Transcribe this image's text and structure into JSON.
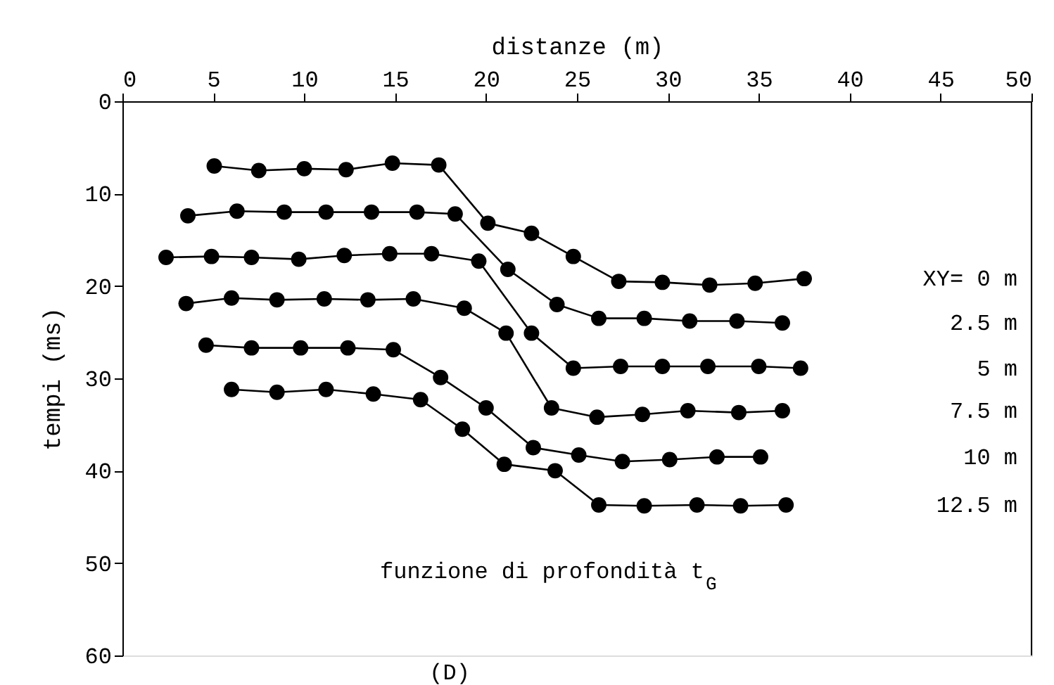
{
  "chart_data": {
    "type": "line",
    "xlabel": "distanze (m)",
    "ylabel": "tempi (ms)",
    "xlim": [
      0,
      50
    ],
    "xticks": [
      0,
      5,
      10,
      15,
      20,
      25,
      30,
      35,
      40,
      45,
      50
    ],
    "ylim": [
      60,
      0
    ],
    "yticks": [
      0,
      10,
      20,
      30,
      40,
      50,
      60
    ],
    "marker": "circle",
    "line_style": "solid",
    "grid": false,
    "legend": false,
    "annotations": [
      "funzione di profondità t$_{G}$",
      "(D)"
    ],
    "series": [
      {
        "name": "XY= 0 m",
        "color": "#000000",
        "x": [
          5.05,
          7.5,
          10.0,
          12.3,
          14.85,
          17.4,
          20.1,
          22.5,
          24.8,
          27.3,
          29.7,
          32.3,
          34.8,
          37.5
        ],
        "values": [
          7.0,
          7.5,
          7.3,
          7.4,
          6.7,
          6.9,
          13.2,
          14.3,
          16.8,
          19.5,
          19.6,
          19.9,
          19.7,
          19.2
        ]
      },
      {
        "name": "2.5 m",
        "color": "#000000",
        "x": [
          3.6,
          6.3,
          8.9,
          11.2,
          13.7,
          16.2,
          18.3,
          21.2,
          23.9,
          26.2,
          28.7,
          31.2,
          33.8,
          36.3
        ],
        "values": [
          12.4,
          11.9,
          12.0,
          12.0,
          12.0,
          12.0,
          12.2,
          18.2,
          22.0,
          23.5,
          23.5,
          23.8,
          23.8,
          24.0
        ]
      },
      {
        "name": "5 m",
        "color": "#000000",
        "x": [
          2.4,
          4.9,
          7.1,
          9.7,
          12.2,
          14.7,
          17.0,
          19.6,
          22.5,
          24.8,
          27.4,
          29.7,
          32.2,
          35.0,
          37.3
        ],
        "values": [
          16.9,
          16.8,
          16.9,
          17.1,
          16.7,
          16.5,
          16.5,
          17.3,
          25.1,
          28.9,
          28.7,
          28.7,
          28.7,
          28.7,
          28.9
        ]
      },
      {
        "name": "7.5 m",
        "color": "#000000",
        "x": [
          3.5,
          6.0,
          8.5,
          11.1,
          13.5,
          16.0,
          18.8,
          21.1,
          23.6,
          26.1,
          28.6,
          31.1,
          33.9,
          36.3
        ],
        "values": [
          21.9,
          21.3,
          21.5,
          21.4,
          21.5,
          21.4,
          22.4,
          25.1,
          33.2,
          34.2,
          33.9,
          33.5,
          33.7,
          33.5
        ]
      },
      {
        "name": "10 m",
        "color": "#000000",
        "x": [
          4.6,
          7.1,
          9.8,
          12.4,
          14.9,
          17.5,
          20.0,
          22.6,
          25.1,
          27.5,
          30.1,
          32.7,
          35.1
        ],
        "values": [
          26.4,
          26.7,
          26.7,
          26.7,
          26.9,
          29.9,
          33.2,
          37.5,
          38.3,
          39.0,
          38.8,
          38.5,
          38.5
        ]
      },
      {
        "name": "12.5 m",
        "color": "#000000",
        "x": [
          6.0,
          8.5,
          11.2,
          13.8,
          16.4,
          18.7,
          21.0,
          23.8,
          26.2,
          28.7,
          31.6,
          34.0,
          36.5
        ],
        "values": [
          31.2,
          31.5,
          31.2,
          31.7,
          32.3,
          35.5,
          39.3,
          40.0,
          43.7,
          43.8,
          43.7,
          43.8,
          43.7
        ]
      }
    ]
  }
}
